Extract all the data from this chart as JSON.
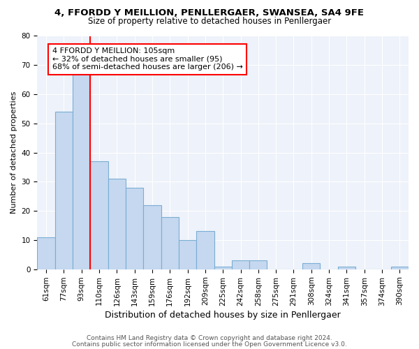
{
  "title1": "4, FFORDD Y MEILLION, PENLLERGAER, SWANSEA, SA4 9FE",
  "title2": "Size of property relative to detached houses in Penllergaer",
  "xlabel": "Distribution of detached houses by size in Penllergaer",
  "ylabel": "Number of detached properties",
  "bar_labels": [
    "61sqm",
    "77sqm",
    "93sqm",
    "110sqm",
    "126sqm",
    "143sqm",
    "159sqm",
    "176sqm",
    "192sqm",
    "209sqm",
    "225sqm",
    "242sqm",
    "258sqm",
    "275sqm",
    "291sqm",
    "308sqm",
    "324sqm",
    "341sqm",
    "357sqm",
    "374sqm",
    "390sqm"
  ],
  "bar_values": [
    11,
    54,
    67,
    37,
    31,
    28,
    22,
    18,
    10,
    13,
    1,
    3,
    3,
    0,
    0,
    2,
    0,
    1,
    0,
    0,
    1
  ],
  "bar_color": "#c5d8ef",
  "bar_edge_color": "#7aadd4",
  "vline_x_index": 2.5,
  "vline_color": "red",
  "annotation_line1": "4 FFORDD Y MEILLION: 105sqm",
  "annotation_line2": "← 32% of detached houses are smaller (95)",
  "annotation_line3": "68% of semi-detached houses are larger (206) →",
  "annotation_box_color": "white",
  "annotation_border_color": "red",
  "ylim": [
    0,
    80
  ],
  "yticks": [
    0,
    10,
    20,
    30,
    40,
    50,
    60,
    70,
    80
  ],
  "footer1": "Contains HM Land Registry data © Crown copyright and database right 2024.",
  "footer2": "Contains public sector information licensed under the Open Government Licence v3.0.",
  "bg_color": "#eef2fa",
  "title1_fontsize": 9.5,
  "title2_fontsize": 8.5,
  "xlabel_fontsize": 9,
  "ylabel_fontsize": 8,
  "tick_fontsize": 7.5,
  "annotation_fontsize": 8,
  "footer_fontsize": 6.5
}
